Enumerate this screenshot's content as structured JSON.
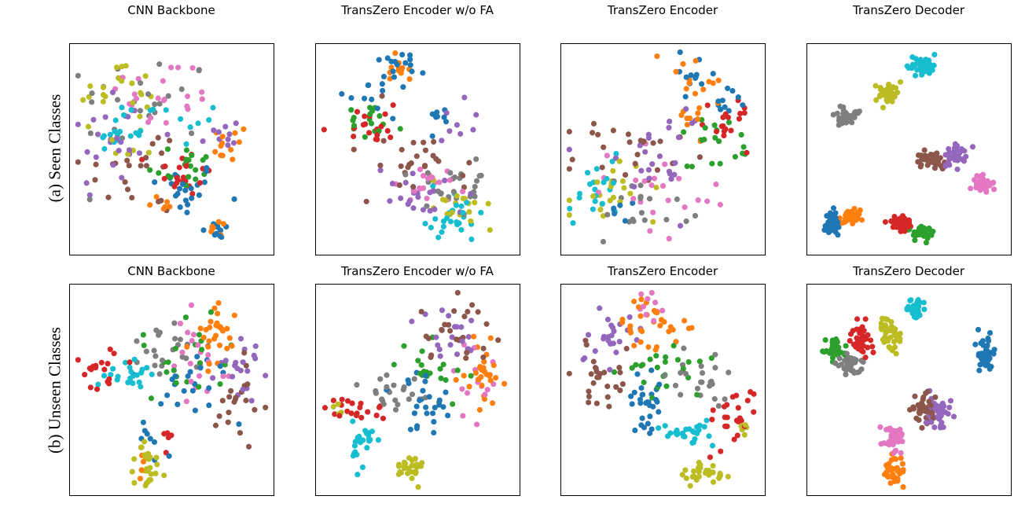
{
  "figure": {
    "row_labels": [
      "(a) Seen Classes",
      "(b) Unseen Classes"
    ],
    "column_titles": [
      "CNN Backbone",
      "TransZero Encoder w/o FA",
      "TransZero Encoder",
      "TransZero Decoder"
    ]
  },
  "palette": [
    "#1f77b4",
    "#ff7f0e",
    "#2ca02c",
    "#d62728",
    "#9467bd",
    "#8c564b",
    "#e377c2",
    "#7f7f7f",
    "#bcbd22",
    "#17becf"
  ],
  "chart_data": [
    {
      "type": "scatter",
      "row": 0,
      "col": 0,
      "title": "CNN Backbone",
      "row_label": "(a) Seen Classes",
      "xlim": [
        0,
        100
      ],
      "ylim": [
        0,
        100
      ],
      "axes_ticks": false,
      "clusters": [
        {
          "class": 0,
          "cx": 55,
          "cy": 30,
          "sx": 10,
          "sy": 7,
          "n": 22
        },
        {
          "class": 0,
          "cx": 74,
          "cy": 8,
          "sx": 4,
          "sy": 3,
          "n": 10
        },
        {
          "class": 1,
          "cx": 80,
          "cy": 53,
          "sx": 5,
          "sy": 5,
          "n": 12
        },
        {
          "class": 1,
          "cx": 75,
          "cy": 10,
          "sx": 3,
          "sy": 2,
          "n": 8
        },
        {
          "class": 1,
          "cx": 50,
          "cy": 22,
          "sx": 6,
          "sy": 3,
          "n": 6
        },
        {
          "class": 2,
          "cx": 55,
          "cy": 42,
          "sx": 9,
          "sy": 6,
          "n": 18
        },
        {
          "class": 3,
          "cx": 55,
          "cy": 38,
          "sx": 8,
          "sy": 6,
          "n": 20
        },
        {
          "class": 4,
          "cx": 20,
          "cy": 55,
          "sx": 12,
          "sy": 16,
          "n": 24
        },
        {
          "class": 4,
          "cx": 75,
          "cy": 55,
          "sx": 6,
          "sy": 6,
          "n": 10
        },
        {
          "class": 5,
          "cx": 35,
          "cy": 40,
          "sx": 16,
          "sy": 12,
          "n": 22
        },
        {
          "class": 6,
          "cx": 45,
          "cy": 77,
          "sx": 15,
          "sy": 10,
          "n": 22
        },
        {
          "class": 7,
          "cx": 35,
          "cy": 75,
          "sx": 18,
          "sy": 12,
          "n": 24
        },
        {
          "class": 8,
          "cx": 22,
          "cy": 80,
          "sx": 10,
          "sy": 8,
          "n": 20
        },
        {
          "class": 8,
          "cx": 30,
          "cy": 52,
          "sx": 8,
          "sy": 8,
          "n": 8
        },
        {
          "class": 9,
          "cx": 20,
          "cy": 58,
          "sx": 8,
          "sy": 4,
          "n": 14
        },
        {
          "class": 9,
          "cx": 50,
          "cy": 64,
          "sx": 12,
          "sy": 6,
          "n": 12
        }
      ]
    },
    {
      "type": "scatter",
      "row": 0,
      "col": 1,
      "title": "TransZero Encoder w/o FA",
      "row_label": "(a) Seen Classes",
      "xlim": [
        0,
        100
      ],
      "ylim": [
        0,
        100
      ],
      "axes_ticks": false,
      "clusters": [
        {
          "class": 0,
          "cx": 30,
          "cy": 80,
          "sx": 9,
          "sy": 5,
          "n": 14
        },
        {
          "class": 0,
          "cx": 40,
          "cy": 93,
          "sx": 6,
          "sy": 3,
          "n": 12
        },
        {
          "class": 0,
          "cx": 60,
          "cy": 66,
          "sx": 5,
          "sy": 3,
          "n": 8
        },
        {
          "class": 1,
          "cx": 40,
          "cy": 92,
          "sx": 5,
          "sy": 3,
          "n": 12
        },
        {
          "class": 2,
          "cx": 25,
          "cy": 66,
          "sx": 9,
          "sy": 5,
          "n": 18
        },
        {
          "class": 3,
          "cx": 28,
          "cy": 63,
          "sx": 8,
          "sy": 5,
          "n": 18
        },
        {
          "class": 4,
          "cx": 50,
          "cy": 28,
          "sx": 10,
          "sy": 6,
          "n": 20
        },
        {
          "class": 4,
          "cx": 72,
          "cy": 60,
          "sx": 8,
          "sy": 6,
          "n": 8
        },
        {
          "class": 5,
          "cx": 45,
          "cy": 42,
          "sx": 14,
          "sy": 10,
          "n": 26
        },
        {
          "class": 6,
          "cx": 55,
          "cy": 32,
          "sx": 10,
          "sy": 6,
          "n": 20
        },
        {
          "class": 7,
          "cx": 72,
          "cy": 30,
          "sx": 10,
          "sy": 7,
          "n": 24
        },
        {
          "class": 8,
          "cx": 72,
          "cy": 22,
          "sx": 10,
          "sy": 6,
          "n": 18
        },
        {
          "class": 9,
          "cx": 65,
          "cy": 15,
          "sx": 9,
          "sy": 6,
          "n": 26
        }
      ]
    },
    {
      "type": "scatter",
      "row": 0,
      "col": 2,
      "title": "TransZero Encoder",
      "row_label": "(a) Seen Classes",
      "xlim": [
        0,
        100
      ],
      "ylim": [
        0,
        100
      ],
      "axes_ticks": false,
      "clusters": [
        {
          "class": 0,
          "cx": 68,
          "cy": 88,
          "sx": 6,
          "sy": 5,
          "n": 12
        },
        {
          "class": 0,
          "cx": 84,
          "cy": 75,
          "sx": 5,
          "sy": 4,
          "n": 10
        },
        {
          "class": 0,
          "cx": 25,
          "cy": 22,
          "sx": 8,
          "sy": 4,
          "n": 6
        },
        {
          "class": 1,
          "cx": 70,
          "cy": 86,
          "sx": 6,
          "sy": 5,
          "n": 12
        },
        {
          "class": 1,
          "cx": 65,
          "cy": 66,
          "sx": 5,
          "sy": 5,
          "n": 10
        },
        {
          "class": 2,
          "cx": 78,
          "cy": 56,
          "sx": 9,
          "sy": 7,
          "n": 20
        },
        {
          "class": 3,
          "cx": 80,
          "cy": 60,
          "sx": 8,
          "sy": 6,
          "n": 18
        },
        {
          "class": 4,
          "cx": 45,
          "cy": 45,
          "sx": 15,
          "sy": 14,
          "n": 24
        },
        {
          "class": 5,
          "cx": 30,
          "cy": 50,
          "sx": 18,
          "sy": 12,
          "n": 24
        },
        {
          "class": 6,
          "cx": 50,
          "cy": 30,
          "sx": 16,
          "sy": 12,
          "n": 24
        },
        {
          "class": 7,
          "cx": 38,
          "cy": 22,
          "sx": 12,
          "sy": 8,
          "n": 18
        },
        {
          "class": 8,
          "cx": 22,
          "cy": 26,
          "sx": 10,
          "sy": 8,
          "n": 22
        },
        {
          "class": 9,
          "cx": 14,
          "cy": 30,
          "sx": 8,
          "sy": 8,
          "n": 22
        }
      ]
    },
    {
      "type": "scatter",
      "row": 0,
      "col": 3,
      "title": "TransZero Decoder",
      "row_label": "(a) Seen Classes",
      "xlim": [
        0,
        100
      ],
      "ylim": [
        0,
        100
      ],
      "axes_ticks": false,
      "clusters": [
        {
          "class": 0,
          "cx": 10,
          "cy": 13,
          "sx": 2.5,
          "sy": 3,
          "n": 40
        },
        {
          "class": 1,
          "cx": 20,
          "cy": 16,
          "sx": 3.5,
          "sy": 2,
          "n": 40
        },
        {
          "class": 2,
          "cx": 56,
          "cy": 8,
          "sx": 3,
          "sy": 2,
          "n": 40
        },
        {
          "class": 3,
          "cx": 46,
          "cy": 13,
          "sx": 3,
          "sy": 2,
          "n": 40
        },
        {
          "class": 4,
          "cx": 74,
          "cy": 47,
          "sx": 3,
          "sy": 3,
          "n": 40
        },
        {
          "class": 5,
          "cx": 62,
          "cy": 45,
          "sx": 3.5,
          "sy": 2.5,
          "n": 40
        },
        {
          "class": 6,
          "cx": 88,
          "cy": 33,
          "sx": 3,
          "sy": 2.5,
          "n": 40
        },
        {
          "class": 7,
          "cx": 18,
          "cy": 66,
          "sx": 3.5,
          "sy": 2.5,
          "n": 40
        },
        {
          "class": 8,
          "cx": 38,
          "cy": 78,
          "sx": 3,
          "sy": 2.5,
          "n": 40
        },
        {
          "class": 9,
          "cx": 57,
          "cy": 92,
          "sx": 3.5,
          "sy": 2.5,
          "n": 40
        }
      ]
    },
    {
      "type": "scatter",
      "row": 1,
      "col": 0,
      "title": "CNN Backbone",
      "row_label": "(b) Unseen Classes",
      "xlim": [
        0,
        100
      ],
      "ylim": [
        0,
        100
      ],
      "axes_ticks": false,
      "clusters": [
        {
          "class": 0,
          "cx": 55,
          "cy": 55,
          "sx": 12,
          "sy": 10,
          "n": 22
        },
        {
          "class": 0,
          "cx": 42,
          "cy": 25,
          "sx": 4,
          "sy": 8,
          "n": 8
        },
        {
          "class": 1,
          "cx": 72,
          "cy": 76,
          "sx": 6,
          "sy": 10,
          "n": 28
        },
        {
          "class": 1,
          "cx": 34,
          "cy": 11,
          "sx": 3,
          "sy": 4,
          "n": 4
        },
        {
          "class": 2,
          "cx": 60,
          "cy": 70,
          "sx": 14,
          "sy": 12,
          "n": 22
        },
        {
          "class": 3,
          "cx": 15,
          "cy": 58,
          "sx": 8,
          "sy": 5,
          "n": 18
        },
        {
          "class": 3,
          "cx": 48,
          "cy": 28,
          "sx": 3,
          "sy": 4,
          "n": 5
        },
        {
          "class": 4,
          "cx": 85,
          "cy": 58,
          "sx": 6,
          "sy": 10,
          "n": 20
        },
        {
          "class": 5,
          "cx": 86,
          "cy": 48,
          "sx": 6,
          "sy": 9,
          "n": 20
        },
        {
          "class": 6,
          "cx": 66,
          "cy": 64,
          "sx": 10,
          "sy": 10,
          "n": 20
        },
        {
          "class": 7,
          "cx": 45,
          "cy": 70,
          "sx": 10,
          "sy": 8,
          "n": 22
        },
        {
          "class": 8,
          "cx": 36,
          "cy": 12,
          "sx": 4,
          "sy": 6,
          "n": 28
        },
        {
          "class": 9,
          "cx": 30,
          "cy": 58,
          "sx": 7,
          "sy": 4,
          "n": 22
        }
      ]
    },
    {
      "type": "scatter",
      "row": 1,
      "col": 1,
      "title": "TransZero Encoder w/o FA",
      "row_label": "(b) Unseen Classes",
      "xlim": [
        0,
        100
      ],
      "ylim": [
        0,
        100
      ],
      "axes_ticks": false,
      "clusters": [
        {
          "class": 0,
          "cx": 55,
          "cy": 42,
          "sx": 5,
          "sy": 7,
          "n": 20
        },
        {
          "class": 0,
          "cx": 40,
          "cy": 55,
          "sx": 8,
          "sy": 4,
          "n": 6
        },
        {
          "class": 1,
          "cx": 85,
          "cy": 57,
          "sx": 5,
          "sy": 8,
          "n": 30
        },
        {
          "class": 2,
          "cx": 55,
          "cy": 65,
          "sx": 9,
          "sy": 9,
          "n": 20
        },
        {
          "class": 3,
          "cx": 18,
          "cy": 40,
          "sx": 8,
          "sy": 3,
          "n": 20
        },
        {
          "class": 4,
          "cx": 65,
          "cy": 78,
          "sx": 9,
          "sy": 7,
          "n": 20
        },
        {
          "class": 5,
          "cx": 70,
          "cy": 80,
          "sx": 10,
          "sy": 8,
          "n": 26
        },
        {
          "class": 6,
          "cx": 80,
          "cy": 56,
          "sx": 6,
          "sy": 10,
          "n": 14
        },
        {
          "class": 7,
          "cx": 38,
          "cy": 48,
          "sx": 10,
          "sy": 7,
          "n": 22
        },
        {
          "class": 8,
          "cx": 45,
          "cy": 10,
          "sx": 4,
          "sy": 4,
          "n": 28
        },
        {
          "class": 8,
          "cx": 12,
          "cy": 40,
          "sx": 3,
          "sy": 3,
          "n": 4
        },
        {
          "class": 9,
          "cx": 22,
          "cy": 23,
          "sx": 3,
          "sy": 6,
          "n": 24
        }
      ]
    },
    {
      "type": "scatter",
      "row": 1,
      "col": 2,
      "title": "TransZero Encoder",
      "row_label": "(b) Unseen Classes",
      "xlim": [
        0,
        100
      ],
      "ylim": [
        0,
        100
      ],
      "axes_ticks": false,
      "clusters": [
        {
          "class": 0,
          "cx": 42,
          "cy": 42,
          "sx": 4,
          "sy": 9,
          "n": 30
        },
        {
          "class": 1,
          "cx": 42,
          "cy": 85,
          "sx": 9,
          "sy": 7,
          "n": 32
        },
        {
          "class": 2,
          "cx": 45,
          "cy": 58,
          "sx": 15,
          "sy": 6,
          "n": 24
        },
        {
          "class": 3,
          "cx": 85,
          "cy": 38,
          "sx": 8,
          "sy": 7,
          "n": 24
        },
        {
          "class": 4,
          "cx": 25,
          "cy": 78,
          "sx": 9,
          "sy": 8,
          "n": 24
        },
        {
          "class": 5,
          "cx": 18,
          "cy": 58,
          "sx": 11,
          "sy": 8,
          "n": 26
        },
        {
          "class": 6,
          "cx": 42,
          "cy": 92,
          "sx": 4,
          "sy": 4,
          "n": 10
        },
        {
          "class": 7,
          "cx": 68,
          "cy": 55,
          "sx": 8,
          "sy": 7,
          "n": 24
        },
        {
          "class": 8,
          "cx": 72,
          "cy": 8,
          "sx": 6,
          "sy": 3,
          "n": 30
        },
        {
          "class": 8,
          "cx": 92,
          "cy": 30,
          "sx": 2,
          "sy": 2,
          "n": 5
        },
        {
          "class": 9,
          "cx": 65,
          "cy": 28,
          "sx": 8,
          "sy": 4,
          "n": 26
        }
      ]
    },
    {
      "type": "scatter",
      "row": 1,
      "col": 3,
      "title": "TransZero Decoder",
      "row_label": "(b) Unseen Classes",
      "xlim": [
        0,
        100
      ],
      "ylim": [
        0,
        100
      ],
      "axes_ticks": false,
      "clusters": [
        {
          "class": 0,
          "cx": 90,
          "cy": 68,
          "sx": 2.5,
          "sy": 4,
          "n": 40
        },
        {
          "class": 1,
          "cx": 42,
          "cy": 9,
          "sx": 2.5,
          "sy": 4,
          "n": 40
        },
        {
          "class": 2,
          "cx": 10,
          "cy": 70,
          "sx": 3,
          "sy": 3,
          "n": 40
        },
        {
          "class": 3,
          "cx": 25,
          "cy": 76,
          "sx": 3,
          "sy": 4,
          "n": 40
        },
        {
          "class": 4,
          "cx": 64,
          "cy": 38,
          "sx": 3,
          "sy": 4,
          "n": 40
        },
        {
          "class": 5,
          "cx": 58,
          "cy": 40,
          "sx": 3,
          "sy": 4,
          "n": 40
        },
        {
          "class": 6,
          "cx": 43,
          "cy": 25,
          "sx": 3,
          "sy": 5,
          "n": 40
        },
        {
          "class": 7,
          "cx": 19,
          "cy": 64,
          "sx": 3,
          "sy": 3,
          "n": 40
        },
        {
          "class": 8,
          "cx": 40,
          "cy": 78,
          "sx": 2.5,
          "sy": 4,
          "n": 40
        },
        {
          "class": 9,
          "cx": 53,
          "cy": 91,
          "sx": 3,
          "sy": 2.5,
          "n": 40
        }
      ]
    }
  ]
}
